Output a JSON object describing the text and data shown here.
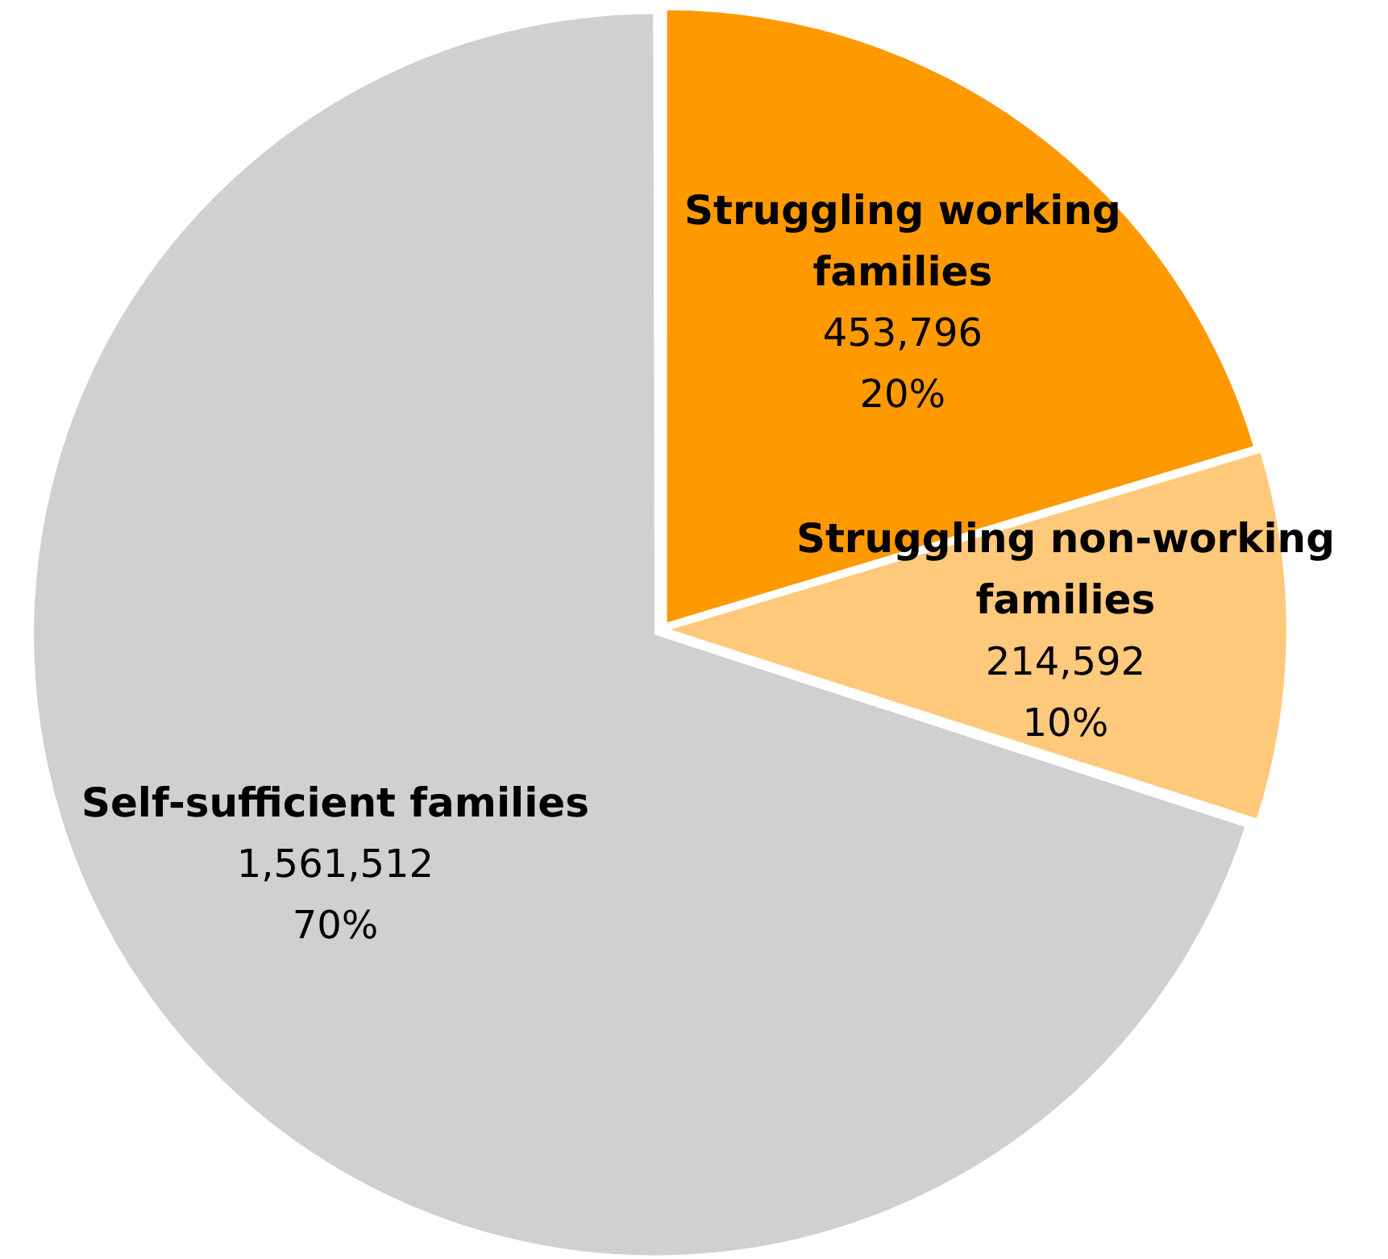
{
  "chart_data": {
    "type": "pie",
    "categories": [
      "Struggling working families",
      "Struggling non-working families",
      "Self-sufficient families"
    ],
    "values": [
      453796,
      214592,
      1561512
    ],
    "colors": [
      "#ff9900",
      "#ffc97c",
      "#d0d0d0"
    ],
    "value_labels": [
      "453,796\n20%",
      "214,592\n10%",
      "1,561,512\n70%"
    ],
    "legend": false
  }
}
